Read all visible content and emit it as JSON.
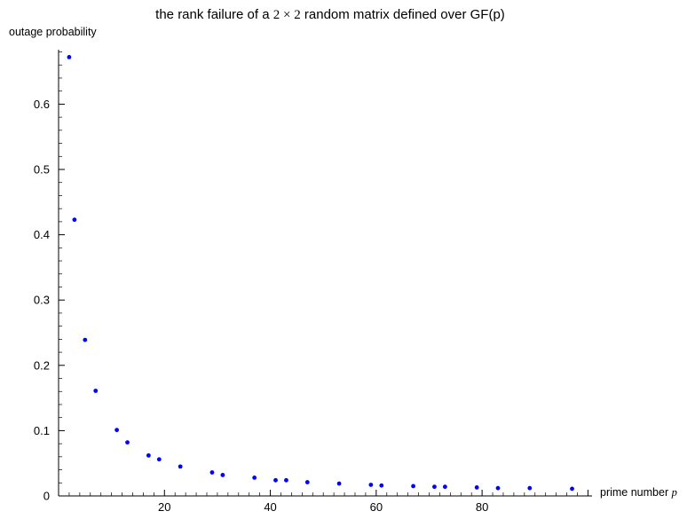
{
  "chart_data": {
    "type": "scatter",
    "title_prefix": "the rank failure of a ",
    "title_math": "2 × 2",
    "title_suffix": " random matrix defined over GF(p)",
    "xlabel_text": "prime number ",
    "xlabel_var": "p",
    "ylabel": "outage probability",
    "xlim": [
      0,
      100
    ],
    "ylim": [
      0,
      0.68
    ],
    "xticks": [
      20,
      40,
      60,
      80
    ],
    "yticks": [
      0,
      0.1,
      0.2,
      0.3,
      0.4,
      0.5,
      0.6
    ],
    "ytick_labels": [
      "0",
      "0.1",
      "0.2",
      "0.3",
      "0.4",
      "0.5",
      "0.6"
    ],
    "grid": false,
    "point_color": "#0000ff",
    "x": [
      2,
      3,
      5,
      7,
      11,
      13,
      17,
      19,
      23,
      29,
      31,
      37,
      41,
      43,
      47,
      53,
      59,
      61,
      67,
      71,
      73,
      79,
      83,
      89,
      97
    ],
    "y": [
      0.672,
      0.423,
      0.239,
      0.161,
      0.101,
      0.082,
      0.062,
      0.056,
      0.045,
      0.036,
      0.032,
      0.028,
      0.024,
      0.024,
      0.021,
      0.019,
      0.017,
      0.016,
      0.015,
      0.014,
      0.014,
      0.013,
      0.012,
      0.012,
      0.011
    ]
  }
}
